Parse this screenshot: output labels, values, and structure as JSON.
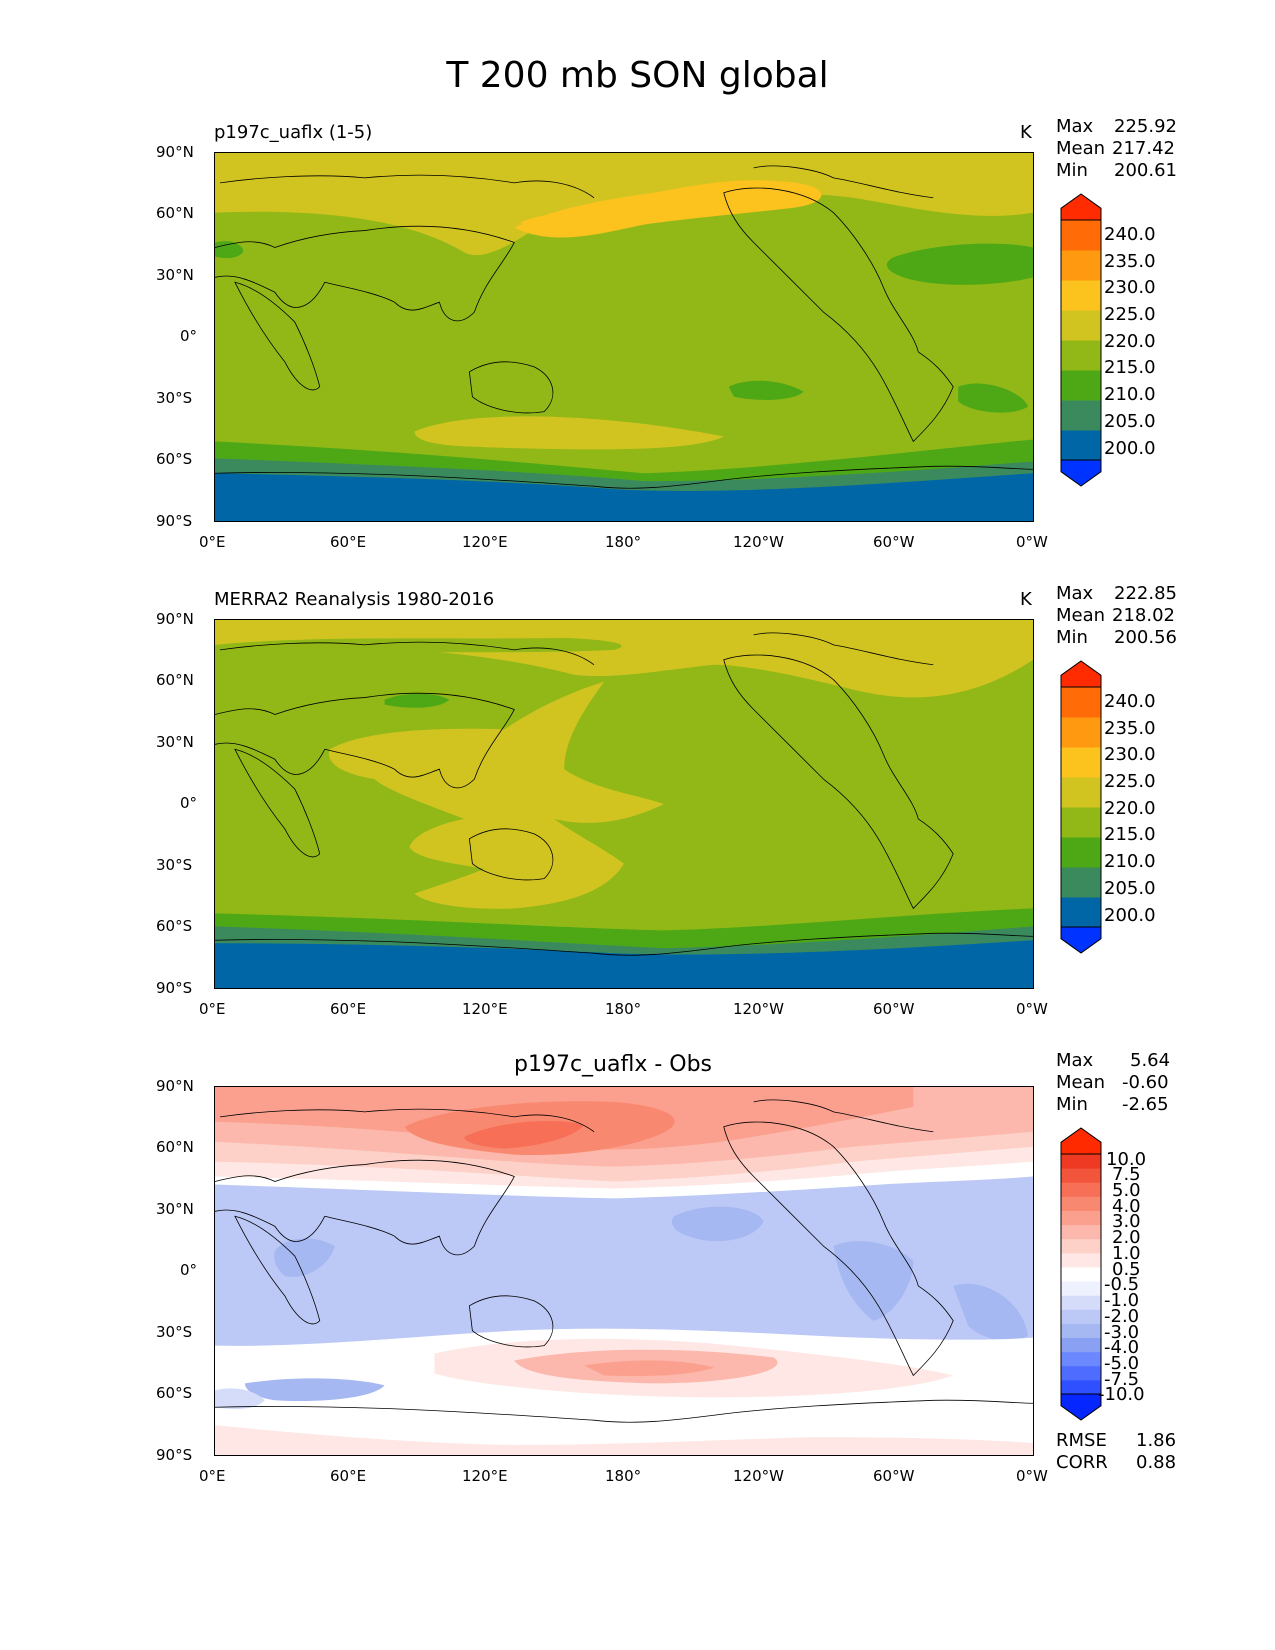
{
  "figure": {
    "title": "T 200 mb SON global",
    "x_ticks": [
      "0°E",
      "60°E",
      "120°E",
      "180°",
      "120°W",
      "60°W",
      "0°W"
    ],
    "y_ticks": [
      "90°N",
      "60°N",
      "30°N",
      "0°",
      "30°S",
      "60°S",
      "90°S"
    ]
  },
  "colors": {
    "abs_levels": [
      "#0033ff",
      "#0066a6",
      "#3a8a5e",
      "#4ea816",
      "#92b818",
      "#d2c420",
      "#fcc21e",
      "#fe9910",
      "#ff6b06",
      "#fe2c00"
    ],
    "diff_levels": [
      "#0526ff",
      "#2e50ff",
      "#4e6cff",
      "#6c88ff",
      "#8aa0f2",
      "#a6b8f2",
      "#bcc8f6",
      "#d4dcfa",
      "#eef2fe",
      "#ffffff",
      "#fee7e4",
      "#fdd0c8",
      "#fcb8ac",
      "#fba08e",
      "#f98870",
      "#f76f56",
      "#f2553c",
      "#ee3a22",
      "#ff2a00"
    ]
  },
  "panels": [
    {
      "subtitle": "p197c_uaflx (1-5)",
      "units": "K",
      "stats": {
        "max_label": "Max",
        "max": "225.92",
        "mean_label": "Mean",
        "mean": "217.42",
        "min_label": "Min",
        "min": "200.61"
      },
      "colorbar_labels": [
        "240.0",
        "235.0",
        "230.0",
        "225.0",
        "220.0",
        "215.0",
        "210.0",
        "205.0",
        "200.0"
      ]
    },
    {
      "subtitle": "MERRA2 Reanalysis 1980-2016",
      "units": "K",
      "stats": {
        "max_label": "Max",
        "max": "222.85",
        "mean_label": "Mean",
        "mean": "218.02",
        "min_label": "Min",
        "min": "200.56"
      },
      "colorbar_labels": [
        "240.0",
        "235.0",
        "230.0",
        "225.0",
        "220.0",
        "215.0",
        "210.0",
        "205.0",
        "200.0"
      ]
    },
    {
      "subtitle": "p197c_uaflx - Obs",
      "stats": {
        "max_label": "Max",
        "max": "5.64",
        "mean_label": "Mean",
        "mean": "-0.60",
        "min_label": "Min",
        "min": "-2.65"
      },
      "colorbar_labels": [
        "10.0",
        "7.5",
        "5.0",
        "4.0",
        "3.0",
        "2.0",
        "1.0",
        "0.5",
        "-0.5",
        "-1.0",
        "-2.0",
        "-3.0",
        "-4.0",
        "-5.0",
        "-7.5",
        "-10.0"
      ],
      "rmse_label": "RMSE",
      "rmse": "1.86",
      "corr_label": "CORR",
      "corr": "0.88"
    }
  ]
}
